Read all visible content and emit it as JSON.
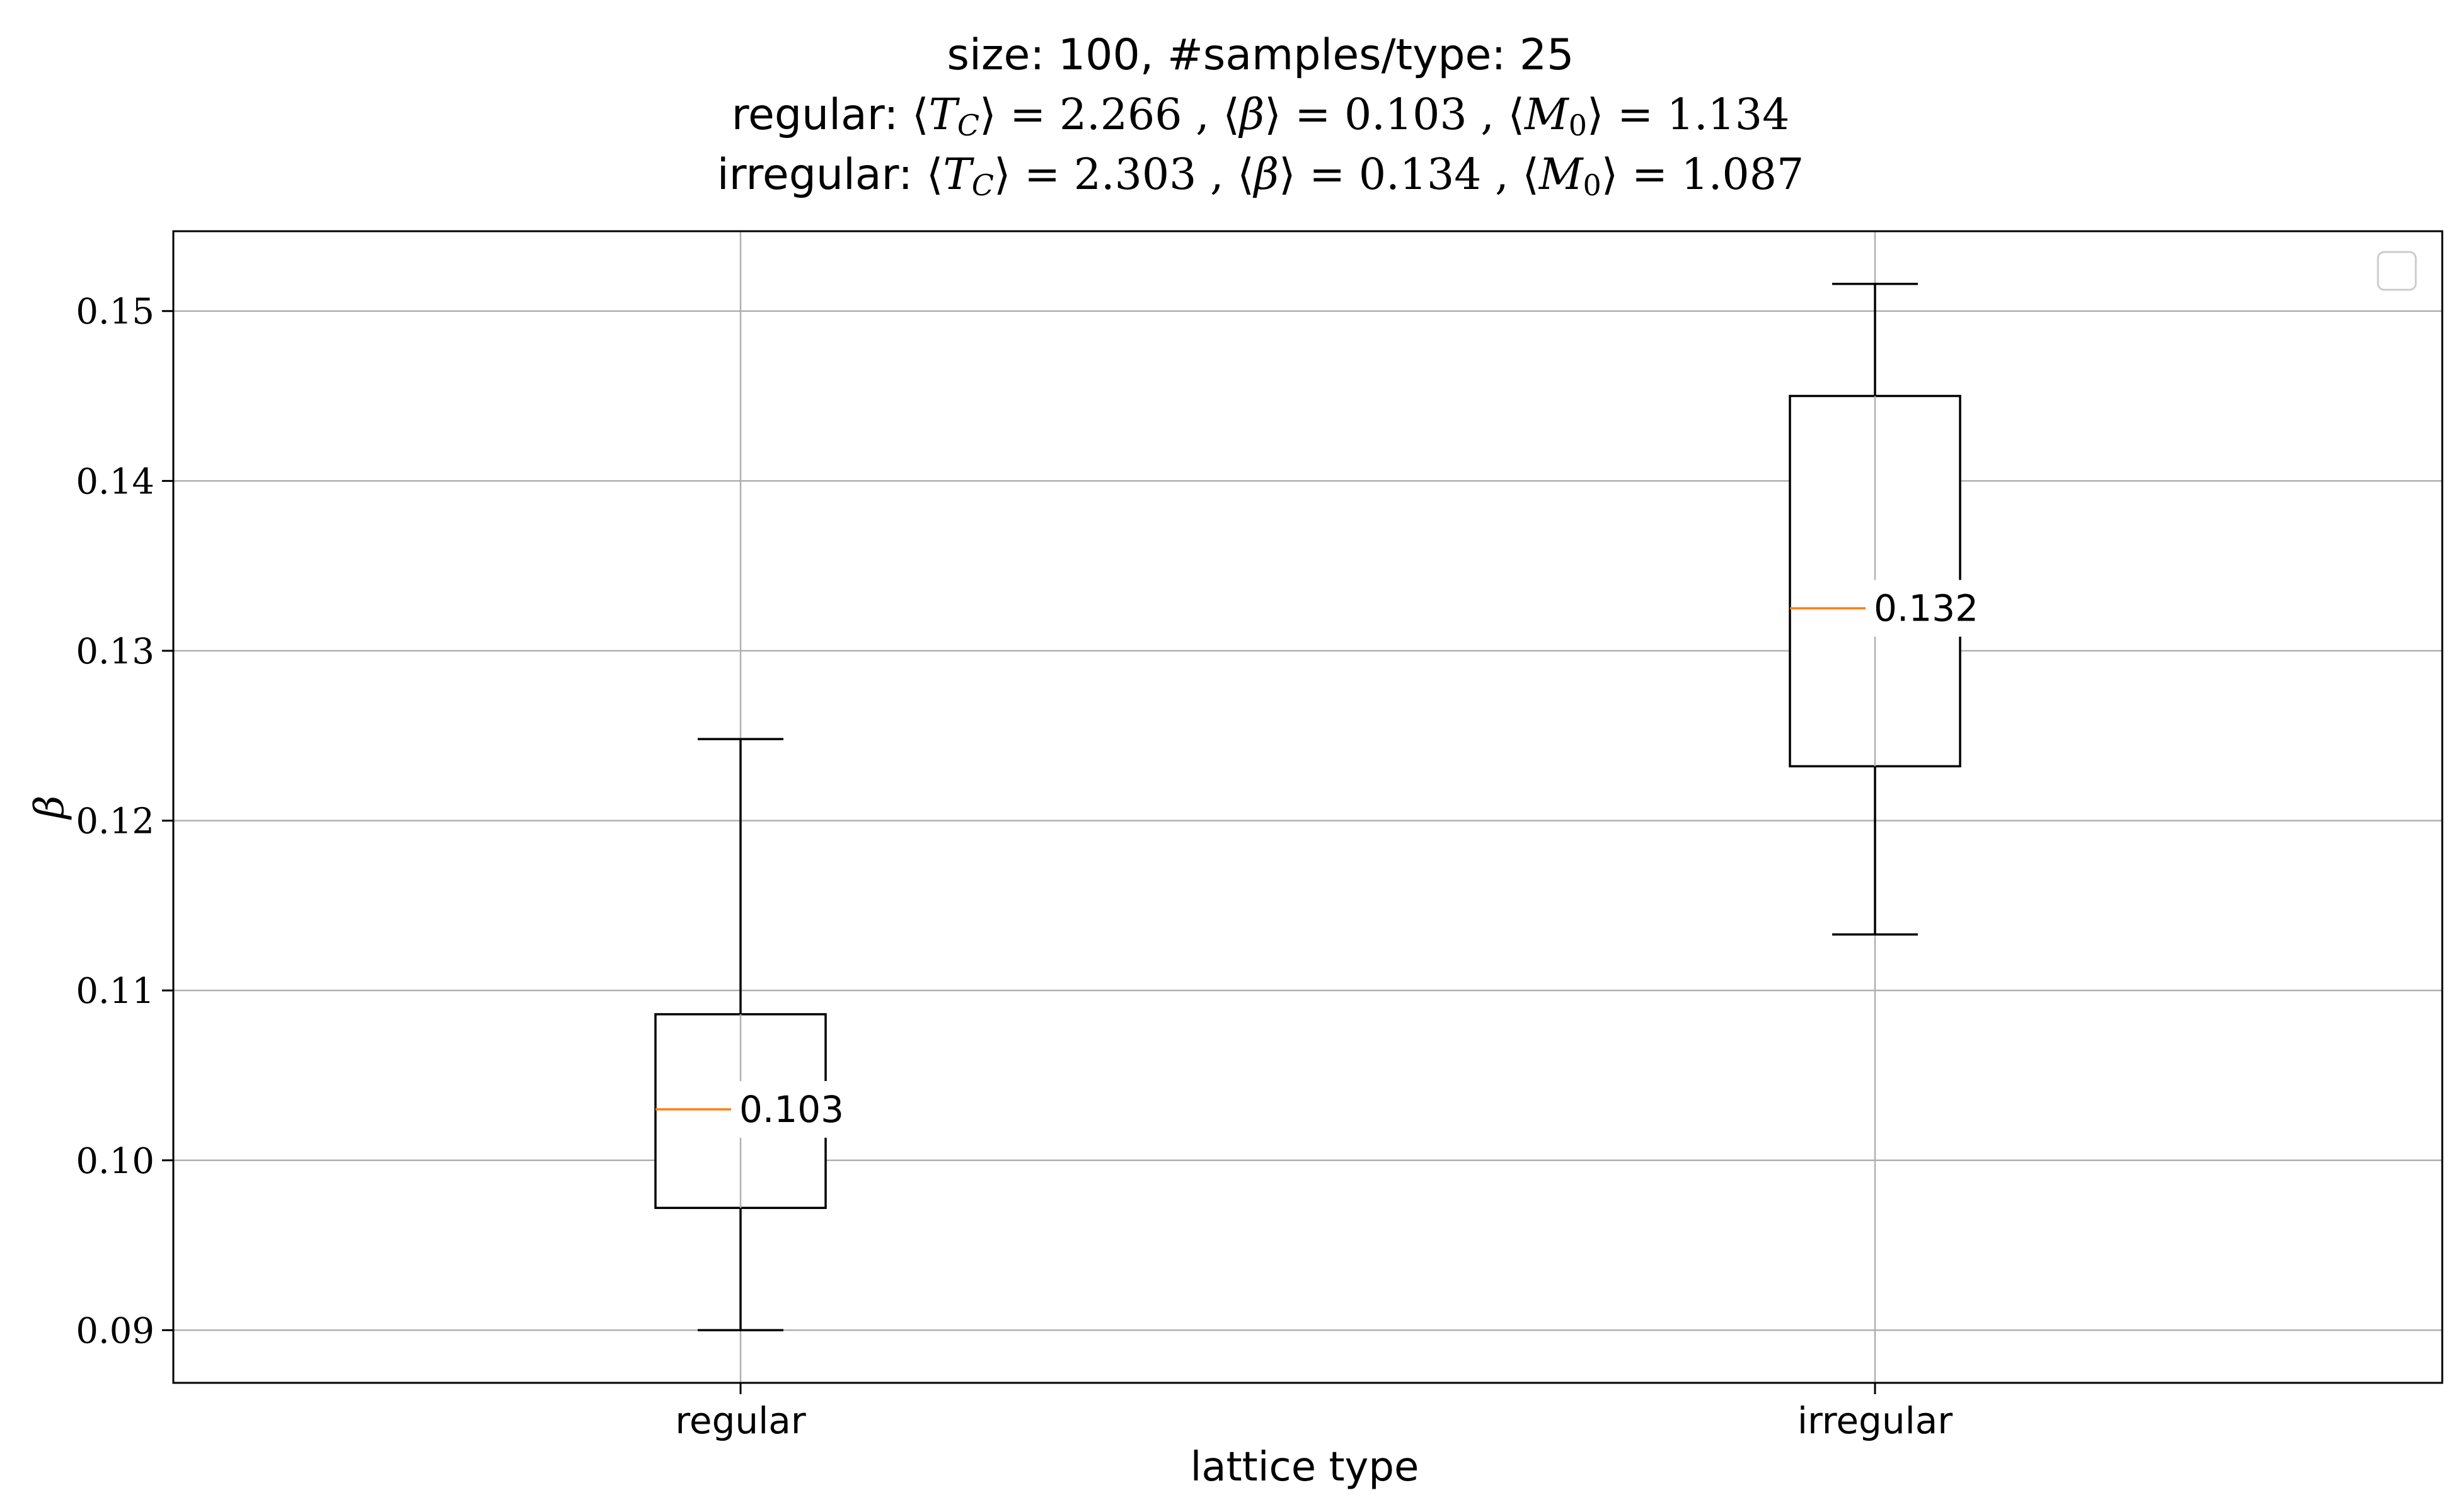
{
  "title": {
    "line1": "size: 100, #samples/type: 25",
    "line2": {
      "prefix": "regular:",
      "tc": "2.266",
      "beta": "0.103",
      "m0": "1.134"
    },
    "line3": {
      "prefix": "irregular:",
      "tc": "2.303",
      "beta": "0.134",
      "m0": "1.087"
    }
  },
  "chart_data": {
    "type": "box",
    "categories": [
      "regular",
      "irregular"
    ],
    "xlabel": "lattice type",
    "ylabel": "β",
    "ylim": [
      0.0869,
      0.1547
    ],
    "yticks": [
      0.09,
      0.1,
      0.11,
      0.12,
      0.13,
      0.14,
      0.15
    ],
    "ytick_labels": [
      "0.09",
      "0.10",
      "0.11",
      "0.12",
      "0.13",
      "0.14",
      "0.15"
    ],
    "grid": true,
    "legend": "top-right (empty)",
    "boxes": [
      {
        "name": "regular",
        "whisker_low": 0.09,
        "q1": 0.0972,
        "median": 0.103,
        "q3": 0.1086,
        "whisker_high": 0.1248,
        "median_label": "0.103"
      },
      {
        "name": "irregular",
        "whisker_low": 0.1133,
        "q1": 0.1232,
        "median": 0.1325,
        "q3": 0.145,
        "whisker_high": 0.1516,
        "median_label": "0.132"
      }
    ],
    "colors": {
      "box": "#000000",
      "median": "#ff7f0e",
      "grid": "#b0b0b0"
    }
  }
}
